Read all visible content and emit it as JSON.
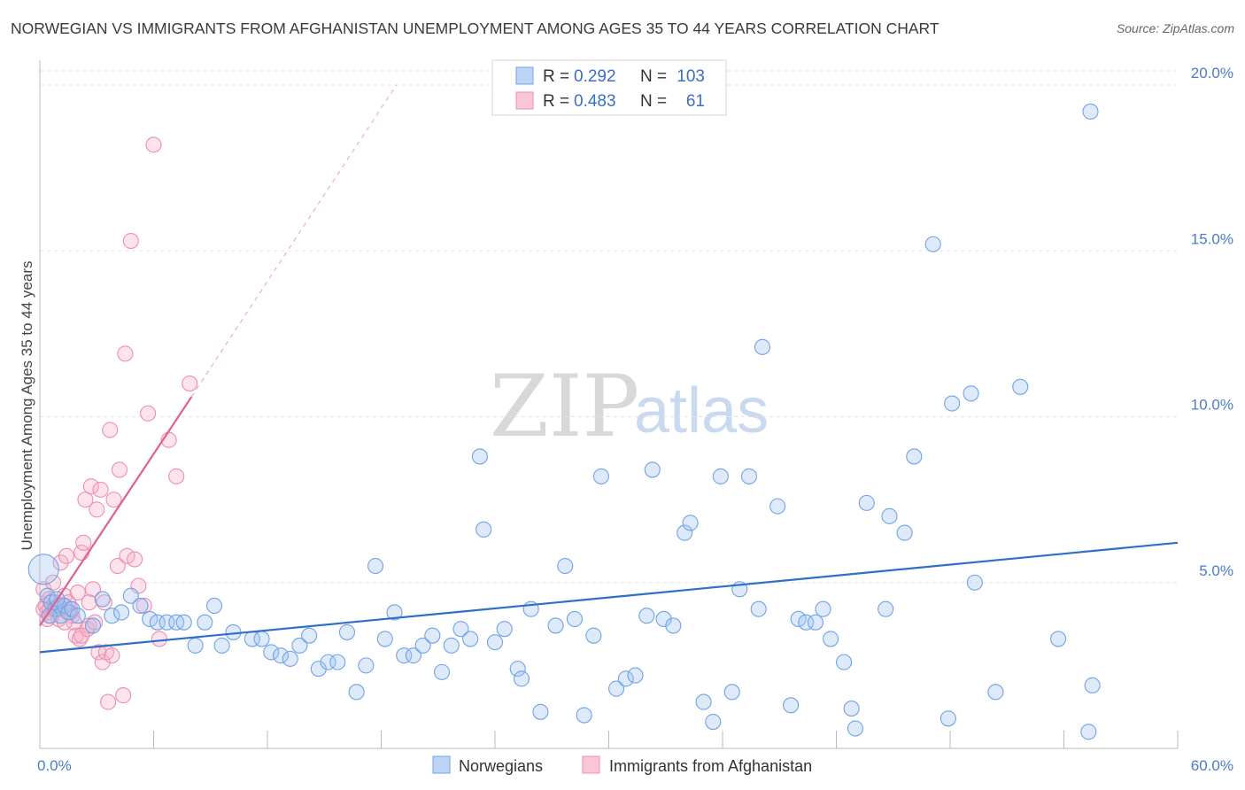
{
  "header": {
    "title": "NORWEGIAN VS IMMIGRANTS FROM AFGHANISTAN UNEMPLOYMENT AMONG AGES 35 TO 44 YEARS CORRELATION CHART",
    "source": "Source: ZipAtlas.com"
  },
  "watermark": {
    "zip": "ZIP",
    "atlas": "atlas"
  },
  "colors": {
    "norwegians": "#6fa3e6",
    "afghanistan": "#f08db0",
    "norwegians_line": "#2f6fc7",
    "afghanistan_line": "#e0608e",
    "tick": "#4a7cc9"
  },
  "legend": {
    "r_label": "R =",
    "n_label": "N =",
    "rows": [
      {
        "r": "0.292",
        "n": "103"
      },
      {
        "r": "0.483",
        "n": "61"
      }
    ]
  },
  "chart_data": {
    "type": "scatter",
    "title": "NORWEGIAN VS IMMIGRANTS FROM AFGHANISTAN UNEMPLOYMENT AMONG AGES 35 TO 44 YEARS CORRELATION CHART",
    "xlabel": "",
    "ylabel": "Unemployment Among Ages 35 to 44 years",
    "xlim": [
      0,
      60
    ],
    "ylim": [
      0,
      20
    ],
    "x_ticks": [
      0,
      6,
      12,
      18,
      24,
      30,
      36,
      42,
      48,
      54,
      60
    ],
    "x_tick_labels": {
      "min": "0.0%",
      "max": "60.0%"
    },
    "y_ticks": [
      {
        "value": 5,
        "label": "5.0%"
      },
      {
        "value": 10,
        "label": "10.0%"
      },
      {
        "value": 15,
        "label": "15.0%"
      },
      {
        "value": 20,
        "label": "20.0%"
      }
    ],
    "series": [
      {
        "name": "Norwegians",
        "color": "#6fa3e6",
        "r": 0.292,
        "n": 103,
        "trend": {
          "x0": 0,
          "y0": 2.9,
          "x1": 60,
          "y1": 6.2
        },
        "points": [
          [
            0.2,
            5.4
          ],
          [
            0.4,
            4.6
          ],
          [
            0.6,
            4.4
          ],
          [
            0.8,
            4.2
          ],
          [
            1.0,
            4.3
          ],
          [
            1.1,
            4.0
          ],
          [
            1.3,
            4.3
          ],
          [
            1.5,
            4.1
          ],
          [
            0.5,
            4.0
          ],
          [
            0.9,
            4.5
          ],
          [
            1.7,
            4.2
          ],
          [
            2.0,
            4.0
          ],
          [
            2.8,
            3.7
          ],
          [
            3.3,
            4.5
          ],
          [
            3.8,
            4.0
          ],
          [
            4.3,
            4.1
          ],
          [
            4.8,
            4.6
          ],
          [
            5.3,
            4.3
          ],
          [
            5.8,
            3.9
          ],
          [
            6.2,
            3.8
          ],
          [
            6.7,
            3.8
          ],
          [
            7.2,
            3.8
          ],
          [
            7.6,
            3.8
          ],
          [
            8.2,
            3.1
          ],
          [
            8.7,
            3.8
          ],
          [
            9.2,
            4.3
          ],
          [
            9.6,
            3.1
          ],
          [
            10.2,
            3.5
          ],
          [
            11.2,
            3.3
          ],
          [
            11.7,
            3.3
          ],
          [
            12.2,
            2.9
          ],
          [
            12.7,
            2.8
          ],
          [
            13.2,
            2.7
          ],
          [
            13.7,
            3.1
          ],
          [
            14.2,
            3.4
          ],
          [
            14.7,
            2.4
          ],
          [
            15.2,
            2.6
          ],
          [
            15.7,
            2.6
          ],
          [
            16.2,
            3.5
          ],
          [
            16.7,
            1.7
          ],
          [
            17.2,
            2.5
          ],
          [
            17.7,
            5.5
          ],
          [
            18.2,
            3.3
          ],
          [
            18.7,
            4.1
          ],
          [
            19.2,
            2.8
          ],
          [
            19.7,
            2.8
          ],
          [
            20.2,
            3.1
          ],
          [
            20.7,
            3.4
          ],
          [
            21.2,
            2.3
          ],
          [
            21.7,
            3.1
          ],
          [
            22.2,
            3.6
          ],
          [
            22.7,
            3.3
          ],
          [
            23.2,
            8.8
          ],
          [
            23.4,
            6.6
          ],
          [
            24.0,
            3.2
          ],
          [
            24.5,
            3.6
          ],
          [
            25.2,
            2.4
          ],
          [
            25.4,
            2.1
          ],
          [
            25.9,
            4.2
          ],
          [
            26.4,
            1.1
          ],
          [
            27.2,
            3.7
          ],
          [
            27.7,
            5.5
          ],
          [
            28.2,
            3.9
          ],
          [
            28.7,
            1.0
          ],
          [
            29.2,
            3.4
          ],
          [
            29.6,
            8.2
          ],
          [
            30.4,
            1.8
          ],
          [
            30.9,
            2.1
          ],
          [
            31.4,
            2.2
          ],
          [
            32.0,
            4.0
          ],
          [
            32.3,
            8.4
          ],
          [
            32.9,
            3.9
          ],
          [
            33.4,
            3.7
          ],
          [
            34.0,
            6.5
          ],
          [
            34.3,
            6.8
          ],
          [
            35.0,
            1.4
          ],
          [
            35.5,
            0.8
          ],
          [
            35.9,
            8.2
          ],
          [
            36.5,
            1.7
          ],
          [
            36.9,
            4.8
          ],
          [
            37.4,
            8.2
          ],
          [
            37.9,
            4.2
          ],
          [
            38.1,
            12.1
          ],
          [
            38.9,
            7.3
          ],
          [
            39.6,
            1.3
          ],
          [
            40.0,
            3.9
          ],
          [
            40.4,
            3.8
          ],
          [
            40.9,
            3.8
          ],
          [
            41.3,
            4.2
          ],
          [
            41.7,
            3.3
          ],
          [
            42.4,
            2.6
          ],
          [
            42.8,
            1.2
          ],
          [
            43.0,
            0.6
          ],
          [
            43.6,
            7.4
          ],
          [
            44.6,
            4.2
          ],
          [
            44.8,
            7.0
          ],
          [
            45.6,
            6.5
          ],
          [
            46.1,
            8.8
          ],
          [
            47.1,
            15.2
          ],
          [
            47.9,
            0.9
          ],
          [
            48.1,
            10.4
          ],
          [
            49.1,
            10.7
          ],
          [
            49.3,
            5.0
          ],
          [
            50.4,
            1.7
          ],
          [
            51.7,
            10.9
          ],
          [
            53.7,
            3.3
          ],
          [
            55.5,
            1.9
          ],
          [
            55.3,
            0.5
          ],
          [
            55.4,
            19.2
          ]
        ]
      },
      {
        "name": "Immigrants from Afghanistan",
        "color": "#f08db0",
        "r": 0.483,
        "n": 61,
        "trend": {
          "x0": 0,
          "y0": 3.7,
          "x1": 8,
          "y1": 10.6,
          "dash_x1": 18.8,
          "dash_y1": 20.0
        },
        "points": [
          [
            0.2,
            4.8
          ],
          [
            0.3,
            4.3
          ],
          [
            0.4,
            4.1
          ],
          [
            0.5,
            4.5
          ],
          [
            0.5,
            4.2
          ],
          [
            0.6,
            4.0
          ],
          [
            0.7,
            5.0
          ],
          [
            0.8,
            4.4
          ],
          [
            0.9,
            4.2
          ],
          [
            1.0,
            4.2
          ],
          [
            1.0,
            3.9
          ],
          [
            1.1,
            5.6
          ],
          [
            1.2,
            4.3
          ],
          [
            1.3,
            4.6
          ],
          [
            1.4,
            5.8
          ],
          [
            1.5,
            4.4
          ],
          [
            1.6,
            4.2
          ],
          [
            1.7,
            4.0
          ],
          [
            1.8,
            3.8
          ],
          [
            1.9,
            3.4
          ],
          [
            2.0,
            4.7
          ],
          [
            2.1,
            3.3
          ],
          [
            2.2,
            5.9
          ],
          [
            2.3,
            6.2
          ],
          [
            2.4,
            7.5
          ],
          [
            2.5,
            3.6
          ],
          [
            2.6,
            3.7
          ],
          [
            2.7,
            7.9
          ],
          [
            2.8,
            4.8
          ],
          [
            2.9,
            3.8
          ],
          [
            3.0,
            7.2
          ],
          [
            3.1,
            2.9
          ],
          [
            3.2,
            7.8
          ],
          [
            3.3,
            2.6
          ],
          [
            3.4,
            4.4
          ],
          [
            3.5,
            2.9
          ],
          [
            3.6,
            1.4
          ],
          [
            3.7,
            9.6
          ],
          [
            3.8,
            2.8
          ],
          [
            3.9,
            7.5
          ],
          [
            4.1,
            5.5
          ],
          [
            4.2,
            8.4
          ],
          [
            4.4,
            1.6
          ],
          [
            4.5,
            11.9
          ],
          [
            4.6,
            5.8
          ],
          [
            4.8,
            15.3
          ],
          [
            5.0,
            5.7
          ],
          [
            5.2,
            4.9
          ],
          [
            5.5,
            4.3
          ],
          [
            5.7,
            10.1
          ],
          [
            6.0,
            18.2
          ],
          [
            6.3,
            3.3
          ],
          [
            6.8,
            9.3
          ],
          [
            7.2,
            8.2
          ],
          [
            7.9,
            11.0
          ],
          [
            0.2,
            4.2
          ],
          [
            0.4,
            3.9
          ],
          [
            1.3,
            3.8
          ],
          [
            1.6,
            4.1
          ],
          [
            2.2,
            3.4
          ],
          [
            2.6,
            4.4
          ]
        ]
      }
    ]
  },
  "bottom_legend": {
    "items": [
      "Norwegians",
      "Immigrants from Afghanistan"
    ]
  }
}
